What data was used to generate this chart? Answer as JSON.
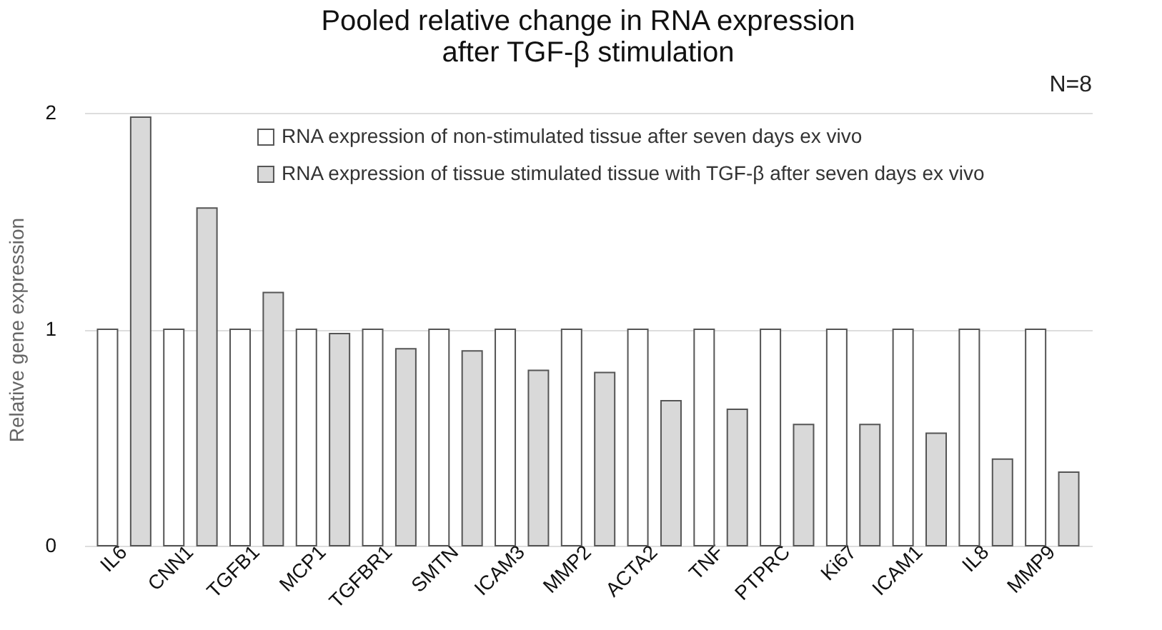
{
  "chart_data": {
    "type": "bar",
    "title": [
      "Pooled relative change in RNA expression",
      "after TGF-β stimulation"
    ],
    "ylabel": "Relative gene expression",
    "annotations": [
      "N=8"
    ],
    "categories": [
      "IL6",
      "CNN1",
      "TGFB1",
      "MCP1",
      "TGFBR1",
      "SMTN",
      "ICAM3",
      "MMP2",
      "ACTA2",
      "TNF",
      "PTPRC",
      "Ki67",
      "ICAM1",
      "IL8",
      "MMP9"
    ],
    "series": [
      {
        "name": "RNA expression of non-stimulated tissue after seven days ex vivo",
        "color": "#ffffff",
        "values": [
          1,
          1,
          1,
          1,
          1,
          1,
          1,
          1,
          1,
          1,
          1,
          1,
          1,
          1,
          1
        ]
      },
      {
        "name": "RNA expression of tissue stimulated tissue with TGF-β after seven days ex vivo",
        "color": "#d9d9d9",
        "values": [
          1.98,
          1.56,
          1.17,
          0.98,
          0.91,
          0.9,
          0.81,
          0.8,
          0.67,
          0.63,
          0.56,
          0.56,
          0.52,
          0.4,
          0.34
        ]
      }
    ],
    "ylim": [
      0,
      2
    ],
    "yticks": [
      0,
      1,
      2
    ],
    "grid": "y",
    "legend": "top"
  }
}
